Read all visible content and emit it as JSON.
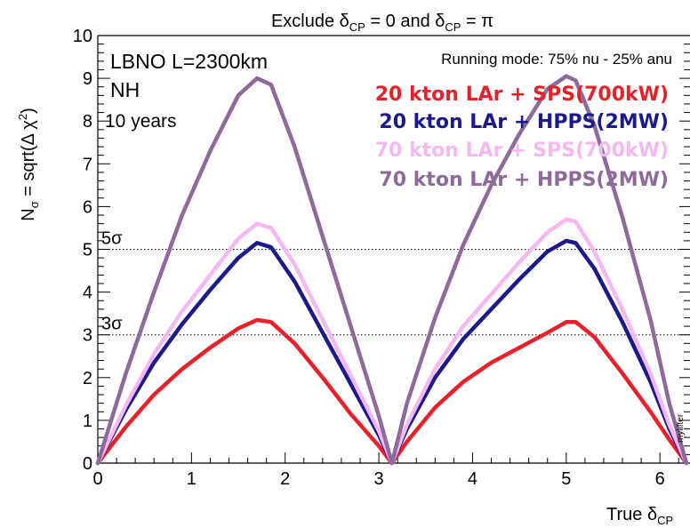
{
  "chart_data": {
    "type": "line",
    "title_parts": {
      "prefix": "Exclude ",
      "delta": "δ",
      "sub": "CP",
      "eq0": " = 0 and ",
      "eqpi": " = π"
    },
    "xlabel_parts": {
      "prefix": "True ",
      "delta": "δ",
      "sub": "CP"
    },
    "ylabel_parts": {
      "n": "N",
      "sigma": "σ",
      "rest": " = sqrt(Δ χ",
      "sup": "2",
      "close": ")"
    },
    "xlim": [
      0,
      6.283
    ],
    "ylim": [
      0,
      10
    ],
    "x_ticks": [
      0,
      1,
      2,
      3,
      4,
      5,
      6
    ],
    "x_tick_labels": [
      "0",
      "1",
      "2",
      "3",
      "4",
      "5",
      "6"
    ],
    "y_ticks": [
      0,
      1,
      2,
      3,
      4,
      5,
      6,
      7,
      8,
      9,
      10
    ],
    "y_tick_labels": [
      "0",
      "1",
      "2",
      "3",
      "4",
      "5",
      "6",
      "7",
      "8",
      "9",
      "10"
    ],
    "grid": false,
    "legend_placement": "top-right",
    "annotations": {
      "experiment": "LBNO L=2300km",
      "hierarchy": "NH",
      "duration": "10 years",
      "running_mode": "Running mode: 75% nu - 25% anu",
      "watermark": "mylifter"
    },
    "reference_lines": [
      {
        "y": 5,
        "label": "5σ"
      },
      {
        "y": 3,
        "label": "3σ"
      }
    ],
    "series": [
      {
        "name": "20 kton LAr + SPS(700kW)",
        "color": "#e8202a",
        "x": [
          0,
          0.3,
          0.6,
          0.9,
          1.2,
          1.5,
          1.7,
          1.85,
          2.1,
          2.4,
          2.7,
          3.0,
          3.14,
          3.3,
          3.6,
          3.9,
          4.2,
          4.5,
          4.8,
          5.0,
          5.1,
          5.3,
          5.6,
          5.9,
          6.1,
          6.283
        ],
        "y": [
          0,
          0.85,
          1.6,
          2.2,
          2.7,
          3.15,
          3.35,
          3.3,
          2.8,
          2.0,
          1.15,
          0.4,
          0,
          0.5,
          1.3,
          1.9,
          2.35,
          2.7,
          3.05,
          3.3,
          3.3,
          2.95,
          2.1,
          1.2,
          0.55,
          0
        ]
      },
      {
        "name": "20 kton LAr + HPPS(2MW)",
        "color": "#1c1a8a",
        "x": [
          0,
          0.3,
          0.6,
          0.9,
          1.2,
          1.5,
          1.7,
          1.85,
          2.1,
          2.4,
          2.7,
          3.0,
          3.14,
          3.3,
          3.6,
          3.9,
          4.2,
          4.5,
          4.8,
          5.0,
          5.1,
          5.3,
          5.6,
          5.9,
          6.1,
          6.283
        ],
        "y": [
          0,
          1.25,
          2.35,
          3.25,
          4.05,
          4.8,
          5.15,
          5.05,
          4.25,
          3.05,
          1.85,
          0.65,
          0,
          0.8,
          2.0,
          2.9,
          3.6,
          4.3,
          4.95,
          5.2,
          5.15,
          4.55,
          3.3,
          1.9,
          0.8,
          0
        ]
      },
      {
        "name": "70 kton LAr + SPS(700kW)",
        "color": "#f6b8f2",
        "x": [
          0,
          0.3,
          0.6,
          0.9,
          1.2,
          1.5,
          1.7,
          1.85,
          2.1,
          2.4,
          2.7,
          3.0,
          3.14,
          3.3,
          3.6,
          3.9,
          4.2,
          4.5,
          4.8,
          5.0,
          5.1,
          5.3,
          5.6,
          5.9,
          6.1,
          6.283
        ],
        "y": [
          0,
          1.35,
          2.55,
          3.55,
          4.4,
          5.25,
          5.6,
          5.5,
          4.65,
          3.35,
          2.05,
          0.75,
          0,
          0.9,
          2.2,
          3.2,
          3.95,
          4.7,
          5.4,
          5.7,
          5.65,
          4.95,
          3.6,
          2.1,
          0.9,
          0
        ]
      },
      {
        "name": "70 kton LAr + HPPS(2MW)",
        "color": "#8e6a9a",
        "x": [
          0,
          0.3,
          0.6,
          0.9,
          1.2,
          1.5,
          1.7,
          1.85,
          2.1,
          2.4,
          2.7,
          3.0,
          3.14,
          3.3,
          3.6,
          3.9,
          4.2,
          4.5,
          4.8,
          5.0,
          5.1,
          5.3,
          5.6,
          5.9,
          6.1,
          6.283
        ],
        "y": [
          0,
          2.1,
          4.0,
          5.8,
          7.3,
          8.6,
          9.0,
          8.85,
          7.4,
          5.3,
          3.2,
          1.1,
          0,
          1.4,
          3.4,
          5.1,
          6.5,
          7.7,
          8.75,
          9.05,
          8.95,
          7.9,
          5.75,
          3.35,
          1.4,
          0
        ]
      }
    ]
  }
}
